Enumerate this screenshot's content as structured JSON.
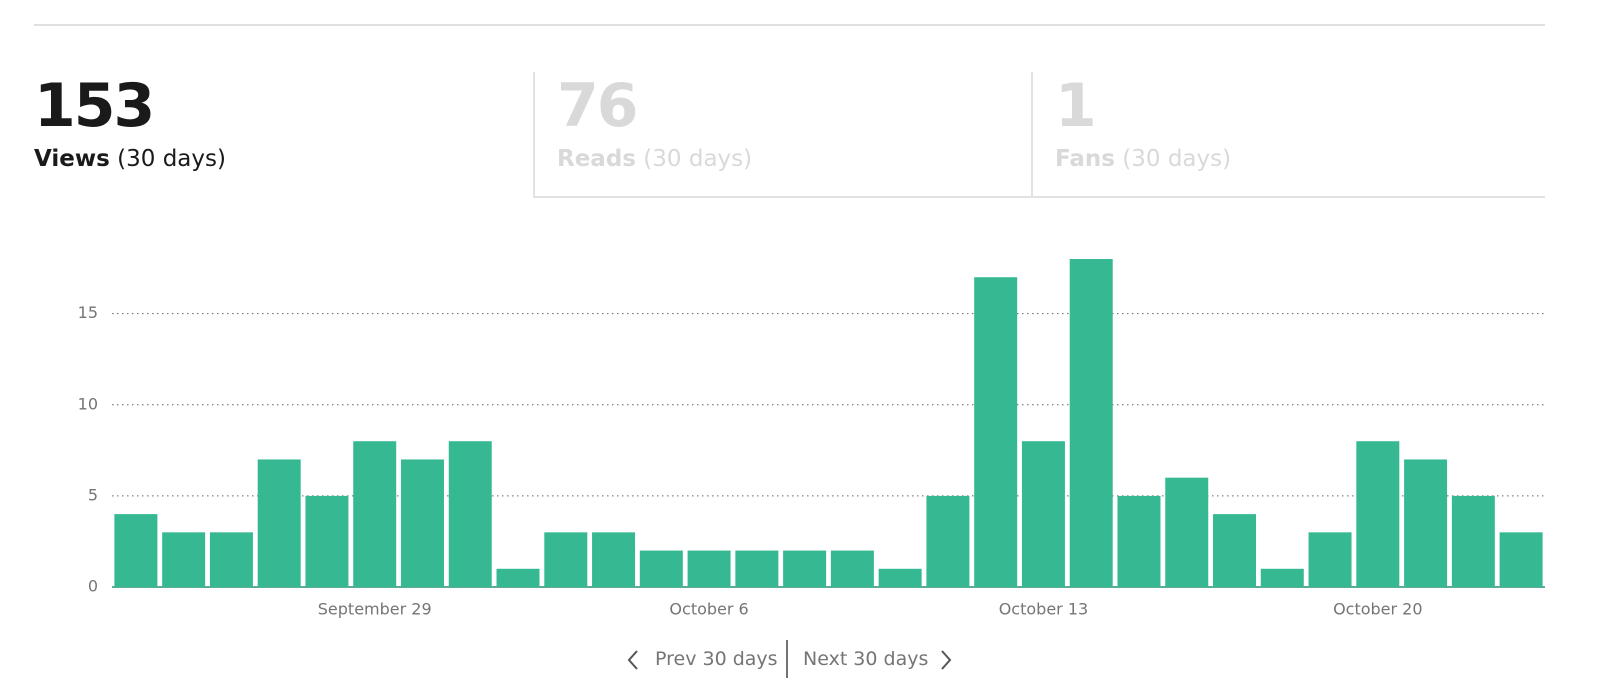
{
  "stats": [
    {
      "value": "153",
      "label": "Views",
      "period": "(30 days)"
    },
    {
      "value": "76",
      "label": "Reads",
      "period": "(30 days)"
    },
    {
      "value": "1",
      "label": "Fans",
      "period": "(30 days)"
    }
  ],
  "chart_data": {
    "type": "bar",
    "categories": [
      null,
      null,
      null,
      null,
      null,
      "September 29",
      null,
      null,
      null,
      null,
      null,
      null,
      "October 6",
      null,
      null,
      null,
      null,
      null,
      null,
      "October 13",
      null,
      null,
      null,
      null,
      null,
      null,
      "October 20",
      null,
      null,
      null
    ],
    "values": [
      4,
      3,
      3,
      7,
      5,
      8,
      7,
      8,
      1,
      3,
      3,
      2,
      2,
      2,
      2,
      2,
      1,
      5,
      17,
      8,
      18,
      5,
      6,
      4,
      1,
      3,
      8,
      7,
      5,
      3
    ],
    "color": "#36b993",
    "ylim": [
      0,
      18
    ],
    "yticks": [
      0,
      5,
      10,
      15
    ],
    "grid": true
  },
  "navigation": {
    "prev": "Prev 30 days",
    "next": "Next 30 days"
  }
}
